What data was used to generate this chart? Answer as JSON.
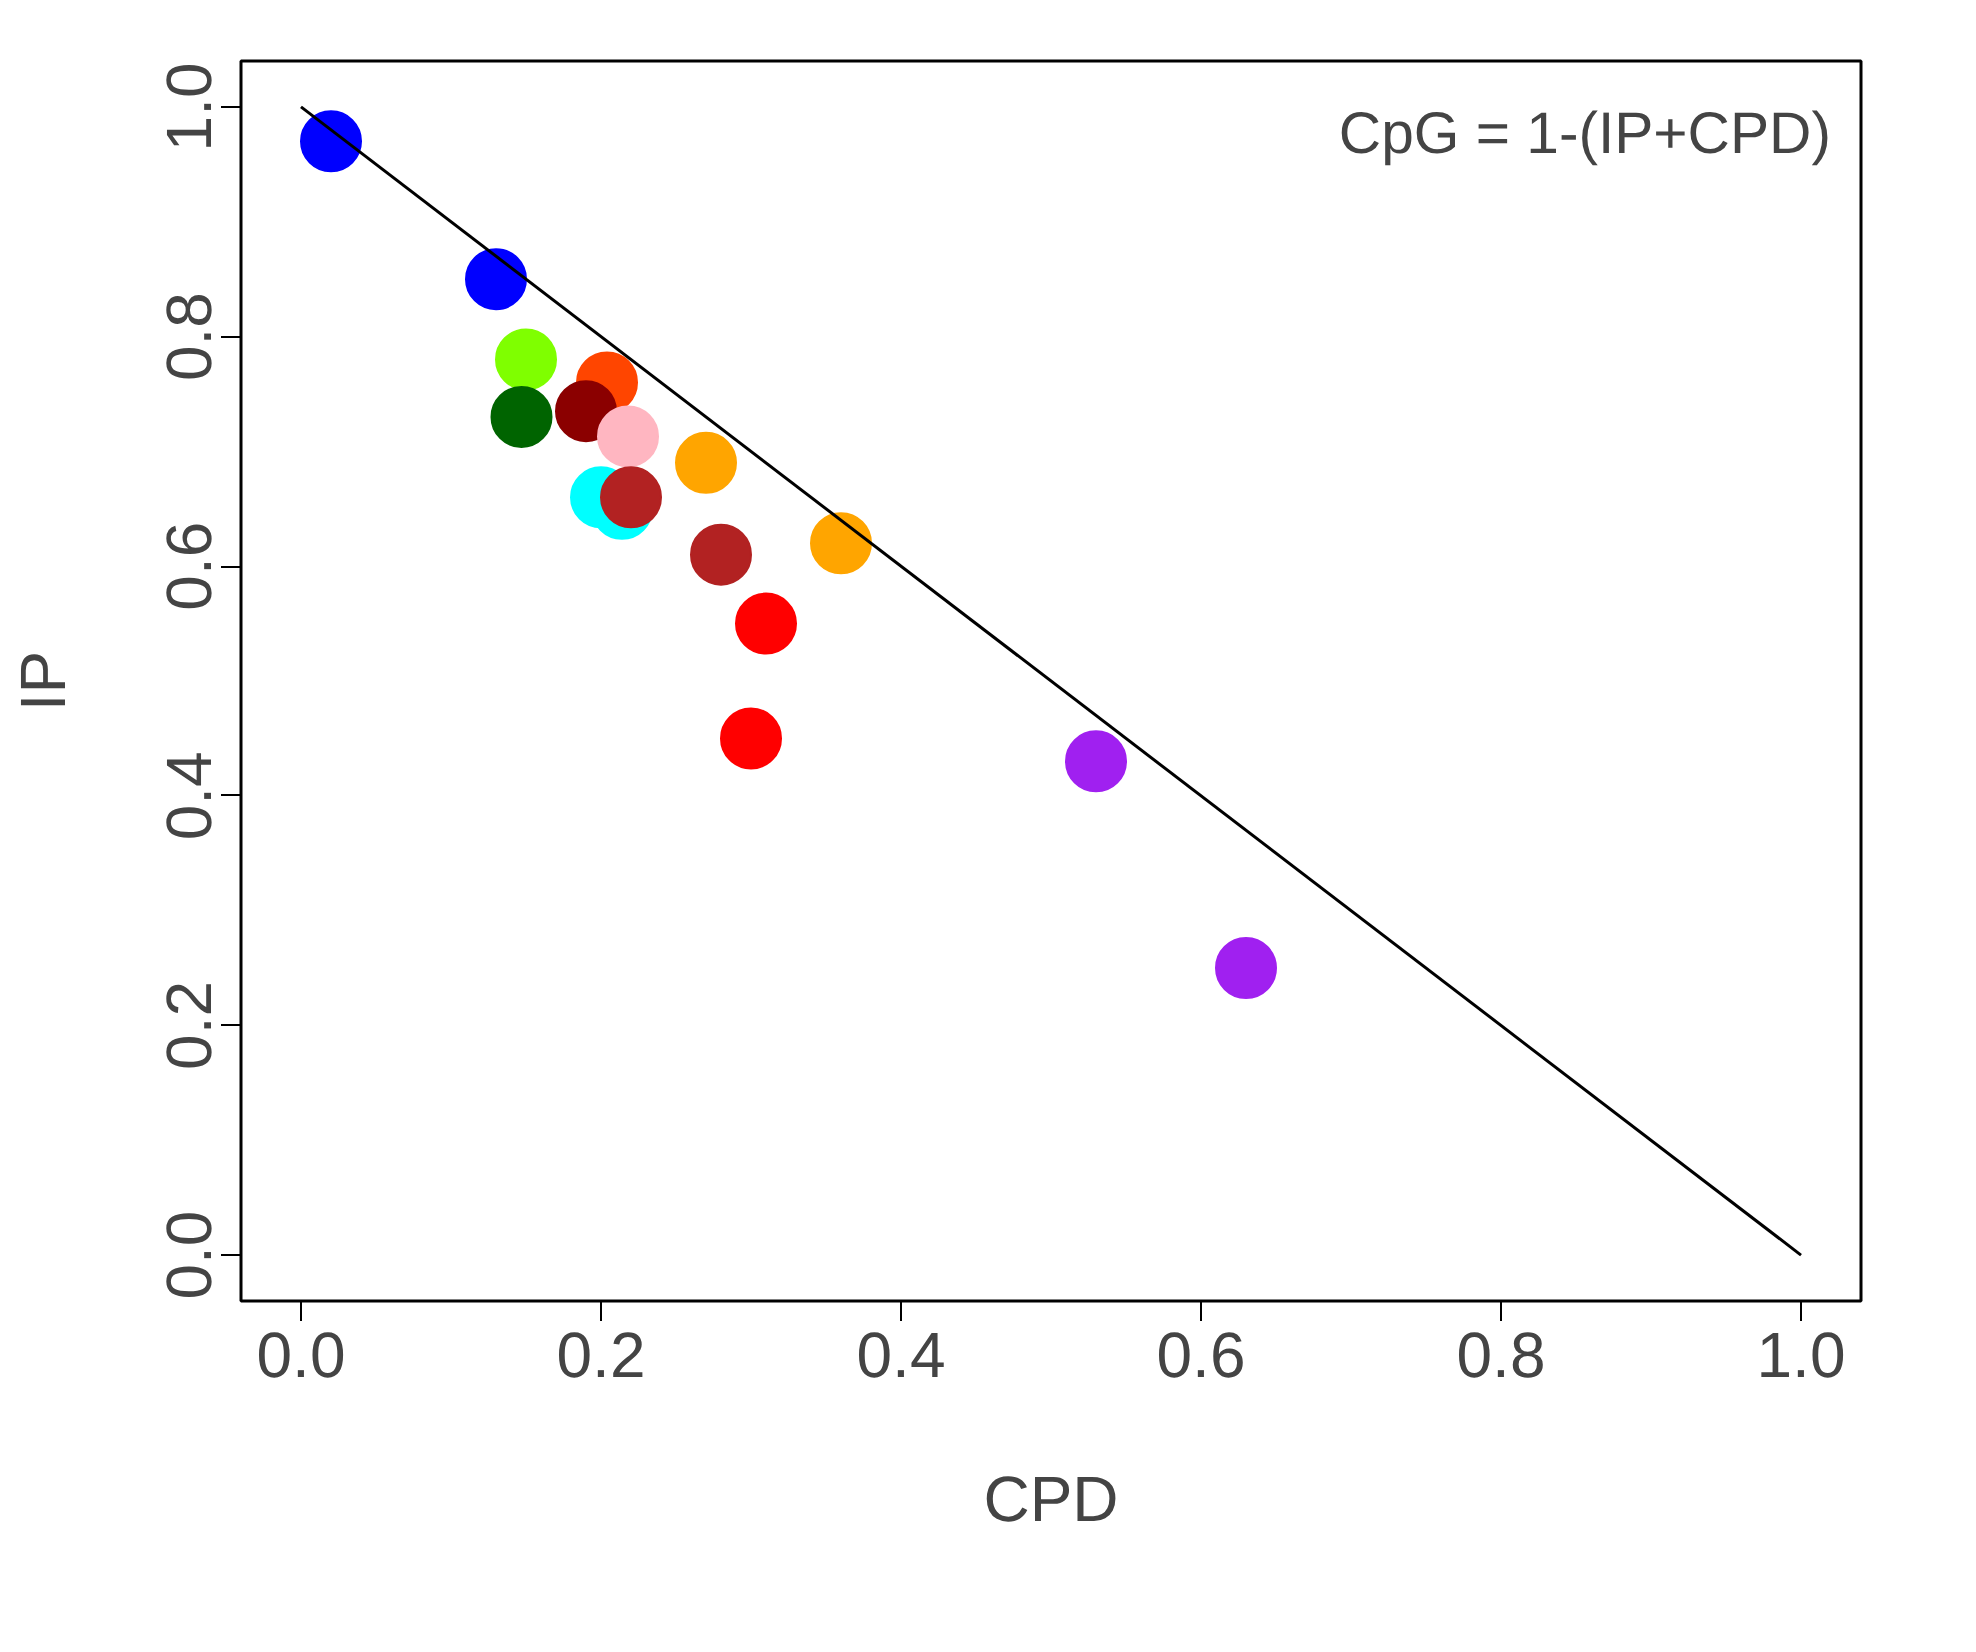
{
  "chart_data": {
    "type": "scatter",
    "xlabel": "CPD",
    "ylabel": "IP",
    "annotations": [
      "CpG = 1-(IP+CPD)"
    ],
    "xlim": [
      -0.04,
      1.04
    ],
    "ylim": [
      -0.04,
      1.04
    ],
    "xticks": [
      {
        "value": 0,
        "label": "0.0"
      },
      0.2,
      0.4,
      0.6,
      0.8,
      {
        "value": 1,
        "label": "1.0"
      }
    ],
    "yticks": [
      {
        "value": 0,
        "label": "0.0"
      },
      0.2,
      0.4,
      0.6,
      0.8,
      {
        "value": 1,
        "label": "1.0"
      }
    ],
    "grid": false,
    "series": [
      {
        "marker": "circle",
        "x": [
          0.02,
          0.13,
          0.15,
          0.147,
          0.204,
          0.19,
          0.218,
          0.2,
          0.214,
          0.22,
          0.27,
          0.28,
          0.31,
          0.3,
          0.36,
          0.53,
          0.63
        ],
        "values": [
          0.97,
          0.85,
          0.78,
          0.73,
          0.76,
          0.735,
          0.713,
          0.66,
          0.65,
          0.66,
          0.69,
          0.61,
          0.55,
          0.45,
          0.62,
          0.43,
          0.25
        ],
        "colors": [
          "#0000ff",
          "#0000ff",
          "#7fff00",
          "#006400",
          "#ff4500",
          "#8b0000",
          "#ffb6c1",
          "#00ffff",
          "#00ffff",
          "#b22222",
          "#ffa500",
          "#b22222",
          "#ff0000",
          "#ff0000",
          "#ffa500",
          "#a020f0",
          "#a020f0"
        ]
      },
      {
        "type": "line",
        "x": [
          0,
          1
        ],
        "values": [
          1,
          0
        ],
        "color": "#000000",
        "line_style": "solid"
      }
    ]
  }
}
